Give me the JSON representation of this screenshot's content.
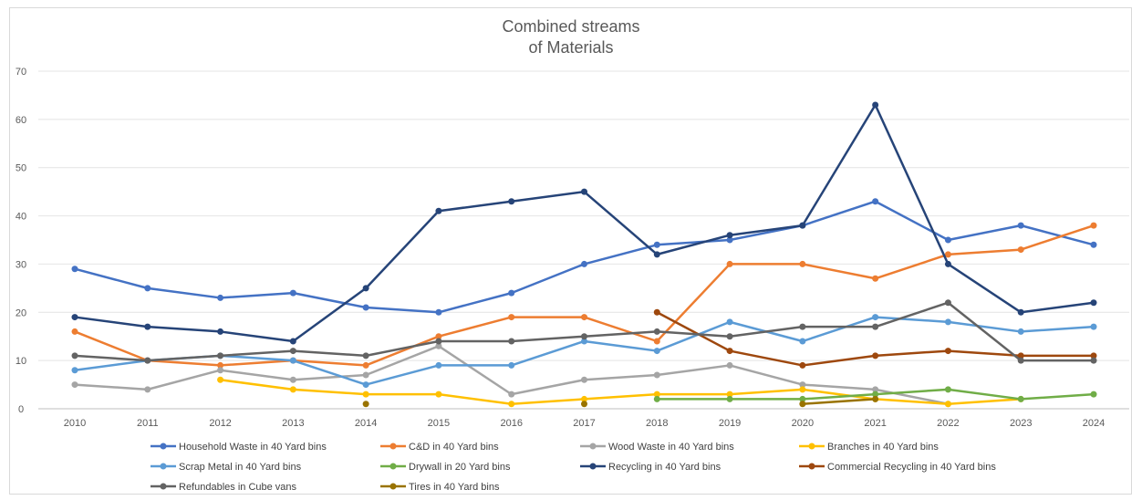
{
  "chart_data": {
    "type": "line",
    "title_line1": "Combined streams",
    "title_line2": "of Materials",
    "xlabel": "",
    "ylabel": "",
    "ylim": [
      0,
      70
    ],
    "yticks": [
      "0",
      "10",
      "20",
      "30",
      "40",
      "50",
      "60",
      "70"
    ],
    "grid": "horizontal",
    "legend": "bottom",
    "x": [
      "2010",
      "2011",
      "2012",
      "2013",
      "2014",
      "2015",
      "2016",
      "2017",
      "2018",
      "2019",
      "2020",
      "2021",
      "2022",
      "2023",
      "2024"
    ],
    "series": [
      {
        "name": "Household Waste in 40 Yard bins",
        "color": "#4472c4",
        "values": [
          29,
          25,
          23,
          24,
          21,
          20,
          24,
          30,
          34,
          35,
          38,
          43,
          35,
          38,
          34
        ]
      },
      {
        "name": "C&D in 40 Yard bins",
        "color": "#ed7d31",
        "values": [
          16,
          10,
          9,
          10,
          9,
          15,
          19,
          19,
          14,
          30,
          30,
          27,
          32,
          33,
          38
        ]
      },
      {
        "name": "Wood Waste in 40 Yard bins",
        "color": "#a5a5a5",
        "values": [
          5,
          4,
          8,
          6,
          7,
          13,
          3,
          6,
          7,
          9,
          5,
          4,
          1,
          null,
          null
        ]
      },
      {
        "name": "Branches in 40 Yard bins",
        "color": "#ffc000",
        "values": [
          null,
          null,
          6,
          4,
          3,
          3,
          1,
          2,
          3,
          3,
          4,
          2,
          1,
          2,
          null
        ]
      },
      {
        "name": "Scrap Metal in 40 Yard bins",
        "color": "#5b9bd5",
        "values": [
          8,
          10,
          11,
          10,
          5,
          9,
          9,
          14,
          12,
          18,
          14,
          19,
          18,
          16,
          17
        ]
      },
      {
        "name": "Drywall in 20 Yard bins",
        "color": "#70ad47",
        "values": [
          null,
          null,
          null,
          null,
          null,
          null,
          null,
          null,
          2,
          2,
          2,
          3,
          4,
          2,
          3
        ]
      },
      {
        "name": "Recycling in 40 Yard bins",
        "color": "#264478",
        "values": [
          19,
          17,
          16,
          14,
          25,
          41,
          43,
          45,
          32,
          36,
          38,
          63,
          30,
          20,
          22
        ]
      },
      {
        "name": "Commercial Recycling in 40 Yard bins",
        "color": "#9e480e",
        "values": [
          null,
          null,
          null,
          null,
          null,
          null,
          null,
          null,
          20,
          12,
          9,
          11,
          12,
          11,
          11
        ]
      },
      {
        "name": "Refundables in Cube vans",
        "color": "#636363",
        "values": [
          11,
          10,
          11,
          12,
          11,
          14,
          14,
          15,
          16,
          15,
          17,
          17,
          22,
          10,
          10
        ]
      },
      {
        "name": "Tires in 40 Yard bins",
        "color": "#997300",
        "values": [
          null,
          null,
          null,
          null,
          1,
          null,
          null,
          1,
          null,
          null,
          1,
          2,
          null,
          null,
          null
        ]
      }
    ]
  }
}
